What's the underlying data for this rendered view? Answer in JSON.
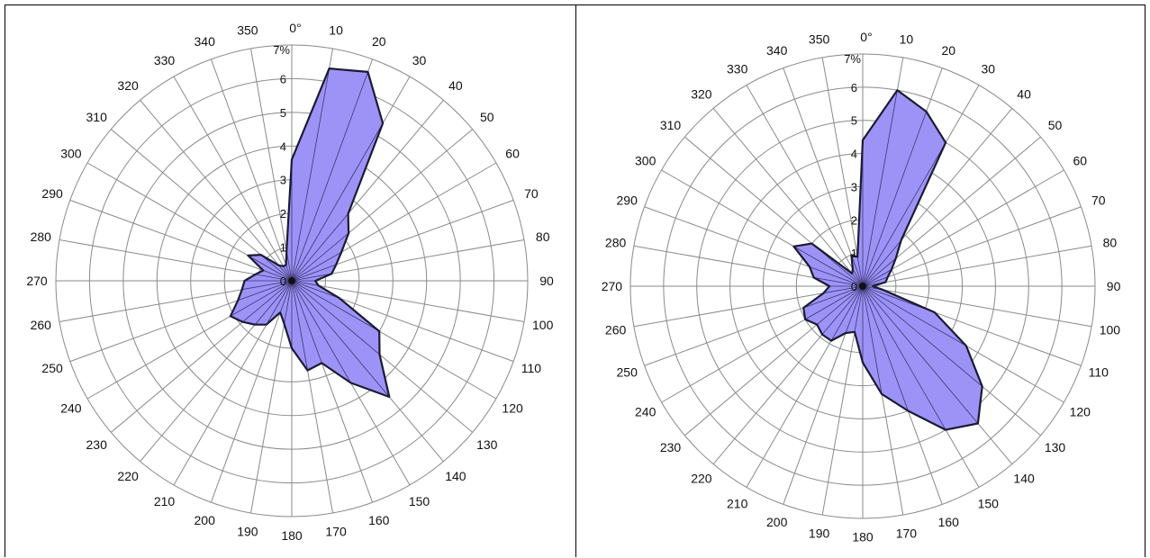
{
  "colors": {
    "fill": "#9d93f7",
    "stroke": "#1b1b33",
    "grid": "#8a8a8a"
  },
  "chart_data": [
    {
      "type": "radar",
      "angle_unit_label": "0°",
      "r_max_label": "7%",
      "rmax": 7,
      "radial_ticks": [
        "0",
        "1",
        "2",
        "3",
        "4",
        "5",
        "6"
      ],
      "angle_labels": [
        "10",
        "20",
        "30",
        "40",
        "50",
        "60",
        "70",
        "80",
        "90",
        "100",
        "110",
        "120",
        "130",
        "140",
        "150",
        "160",
        "170",
        "180",
        "190",
        "200",
        "210",
        "220",
        "230",
        "240",
        "250",
        "260",
        "270",
        "280",
        "290",
        "300",
        "310",
        "320",
        "330",
        "340",
        "350"
      ],
      "directions": [
        0,
        10,
        20,
        30,
        40,
        50,
        60,
        70,
        80,
        90,
        100,
        110,
        120,
        130,
        140,
        150,
        160,
        170,
        180,
        190,
        200,
        210,
        220,
        230,
        240,
        250,
        260,
        270,
        280,
        290,
        300,
        310,
        320,
        330,
        340,
        350
      ],
      "values": [
        3.6,
        6.4,
        6.6,
        5.4,
        2.6,
        2.2,
        1.7,
        1.4,
        1.2,
        0.7,
        0.8,
        1.5,
        3.0,
        3.4,
        4.5,
        3.5,
        2.6,
        2.7,
        2.0,
        1.3,
        1.0,
        1.5,
        1.7,
        1.9,
        2.1,
        1.7,
        1.5,
        1.4,
        1.1,
        0.9,
        1.5,
        1.2,
        0.6,
        0.5,
        0.5,
        0.9
      ]
    },
    {
      "type": "radar",
      "angle_unit_label": "0°",
      "r_max_label": "7%",
      "rmax": 7,
      "radial_ticks": [
        "0",
        "1",
        "2",
        "3",
        "4",
        "5",
        "6"
      ],
      "angle_labels": [
        "10",
        "20",
        "30",
        "40",
        "50",
        "60",
        "70",
        "80",
        "90",
        "100",
        "110",
        "120",
        "130",
        "140",
        "150",
        "160",
        "170",
        "180",
        "190",
        "200",
        "210",
        "220",
        "230",
        "240",
        "250",
        "260",
        "270",
        "280",
        "290",
        "300",
        "310",
        "320",
        "330",
        "340",
        "350"
      ],
      "directions": [
        0,
        10,
        20,
        30,
        40,
        50,
        60,
        70,
        80,
        90,
        100,
        110,
        120,
        130,
        140,
        150,
        160,
        170,
        180,
        190,
        200,
        210,
        220,
        230,
        240,
        250,
        260,
        270,
        280,
        290,
        300,
        310,
        320,
        330,
        340,
        350
      ],
      "values": [
        4.4,
        6.0,
        5.6,
        5.0,
        1.8,
        1.3,
        1.0,
        0.8,
        0.7,
        0.3,
        0.6,
        2.3,
        3.6,
        4.7,
        5.4,
        5.0,
        4.0,
        3.3,
        2.3,
        1.4,
        1.5,
        1.9,
        1.9,
        1.8,
        2.0,
        1.9,
        1.2,
        1.0,
        1.5,
        1.7,
        2.4,
        2.0,
        0.5,
        0.6,
        1.0,
        0.9
      ]
    }
  ]
}
